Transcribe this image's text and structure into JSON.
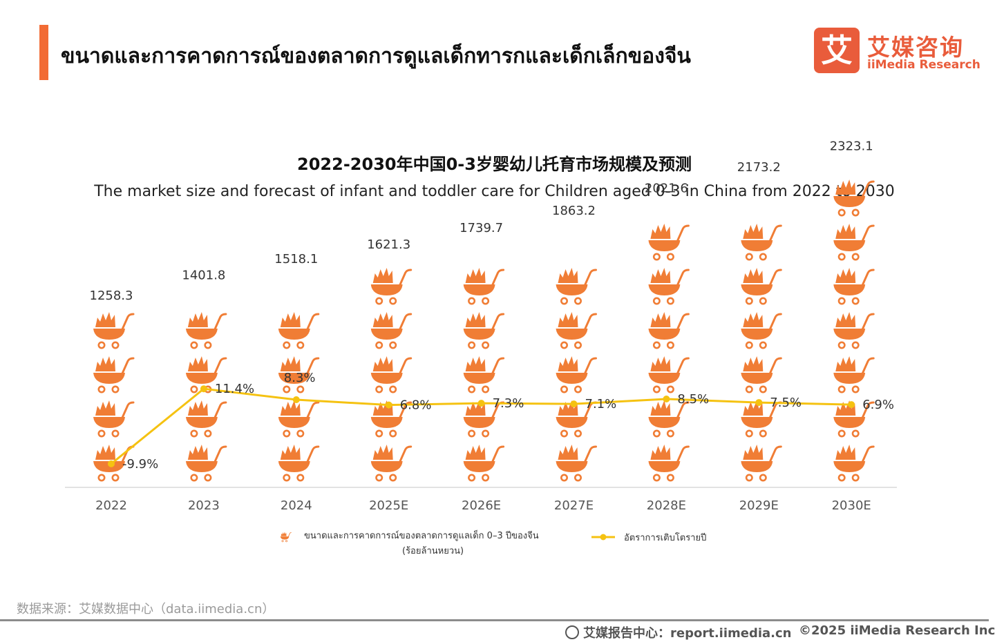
{
  "header": {
    "title": "ขนาดและการคาดการณ์ของตลาดการดูแลเด็กทารกและเด็กเล็กของจีน",
    "logo_mark": "艾",
    "logo_cn": "艾媒咨询",
    "logo_en": "iiMedia Research"
  },
  "chart_data": {
    "type": "bar",
    "title": "2022-2030年中国0-3岁婴幼儿托育市场规模及预测",
    "subtitle": "The market size and forecast of infant and toddler care for Children aged 0-3 in China from 2022 to 2030",
    "categories": [
      "2022",
      "2023",
      "2024",
      "2025E",
      "2026E",
      "2027E",
      "2028E",
      "2029E",
      "2030E"
    ],
    "series": [
      {
        "name": "ขนาดและการคาดการณ์ของตลาดการดูแลเด็ก 0–3 ปีของจีน",
        "unit": "(ร้อยล้านหยวน)",
        "type": "pictorial-bar",
        "color": "#f07d35",
        "values": [
          1258.3,
          1401.8,
          1518.1,
          1621.3,
          1739.7,
          1863.2,
          2021.6,
          2173.2,
          2323.1
        ],
        "labels": [
          "1258.3",
          "1401.8",
          "1518.1",
          "1621.3",
          "1739.7",
          "1863.2",
          "2021.6",
          "2173.2",
          "2323.1"
        ]
      },
      {
        "name": "อัตราการเติบโตรายปี",
        "type": "line",
        "color": "#f5c211",
        "values": [
          -9.9,
          11.4,
          8.3,
          6.8,
          7.3,
          7.1,
          8.5,
          7.5,
          6.9
        ],
        "labels": [
          "-9.9%",
          "11.4%",
          "8.3%",
          "6.8%",
          "7.3%",
          "7.1%",
          "8.5%",
          "7.5%",
          "6.9%"
        ]
      }
    ],
    "ylim": [
      0,
      2500
    ],
    "grid": false,
    "legend": "bottom"
  },
  "footer": {
    "source": "数据来源：艾媒数据中心（data.iimedia.cn）",
    "report": "艾媒报告中心：report.iimedia.cn",
    "copyright": "©2025  iiMedia Research  Inc"
  }
}
